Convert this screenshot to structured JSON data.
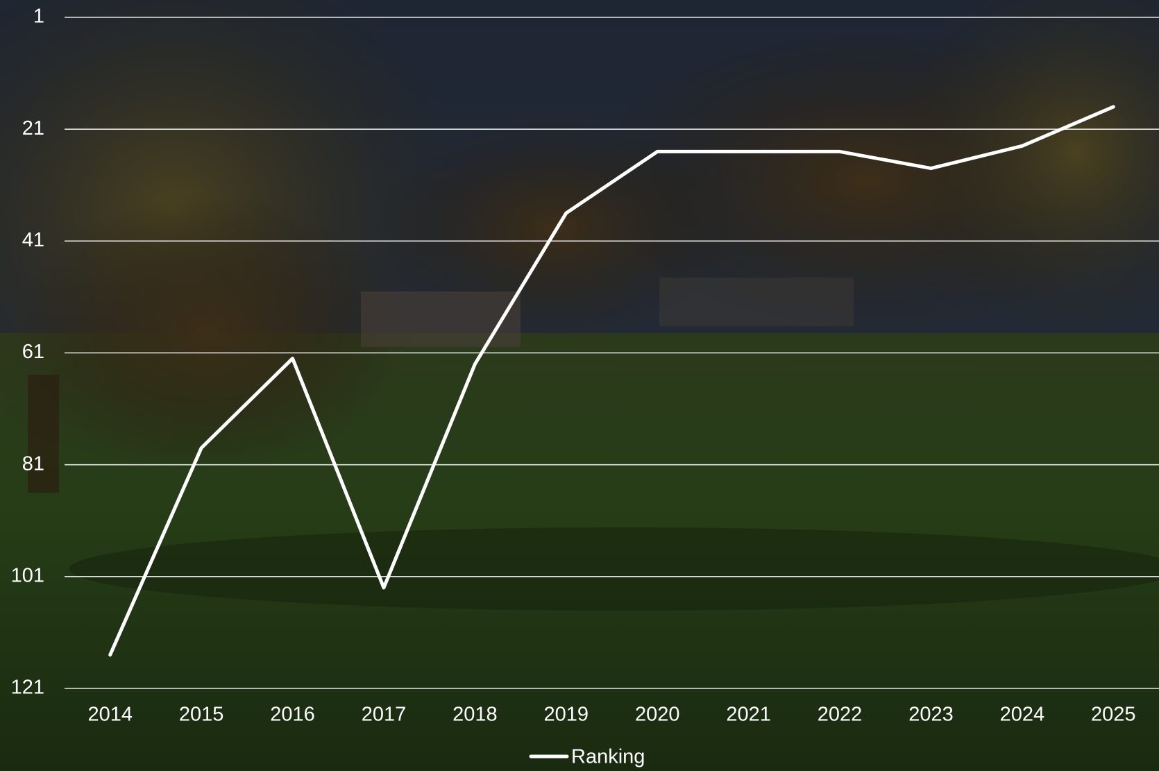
{
  "chart_data": {
    "type": "line",
    "categories": [
      "2014",
      "2015",
      "2016",
      "2017",
      "2018",
      "2019",
      "2020",
      "2021",
      "2022",
      "2023",
      "2024",
      "2025"
    ],
    "series": [
      {
        "name": "Ranking",
        "color": "#ffffff",
        "values": [
          115,
          78,
          62,
          103,
          63,
          36,
          25,
          25,
          25,
          28,
          24,
          17
        ]
      }
    ],
    "ylim": [
      1,
      121
    ],
    "yticks": [
      1,
      21,
      41,
      61,
      81,
      101,
      121
    ],
    "y_inverted": true,
    "grid": true,
    "legend": "bottom"
  }
}
